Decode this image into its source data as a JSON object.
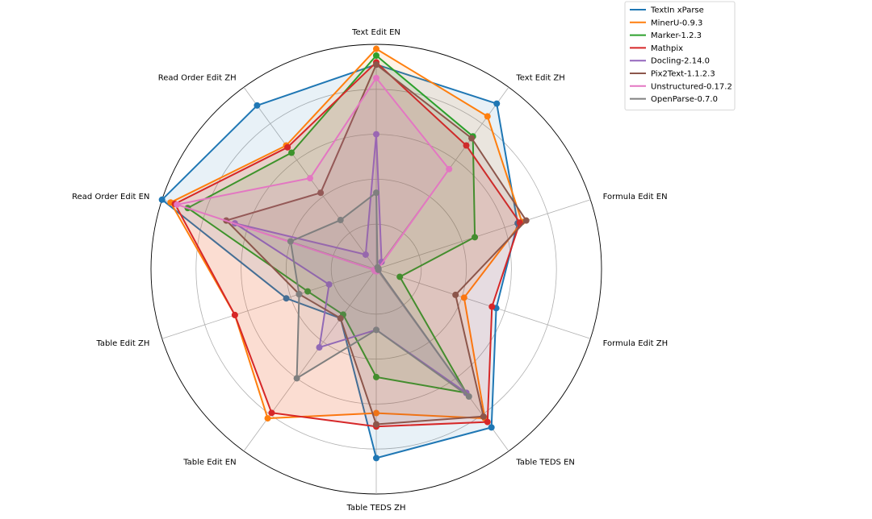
{
  "chart_data": {
    "type": "radar",
    "title": "",
    "axes": [
      "Text Edit EN",
      "Text Edit ZH",
      "Formula Edit EN",
      "Formula Edit ZH",
      "Table TEDS EN",
      "Table TEDS ZH",
      "Table Edit EN",
      "Table Edit ZH",
      "Read Order Edit EN",
      "Read Order Edit ZH"
    ],
    "rlim": [
      0,
      1
    ],
    "grid_levels": [
      0.2,
      0.4,
      0.6,
      0.8,
      1.0
    ],
    "legend_position": "top-right",
    "series": [
      {
        "name": "TextIn xParse",
        "color": "#1f77b4",
        "values": [
          0.91,
          0.91,
          0.66,
          0.56,
          0.87,
          0.84,
          0.27,
          0.42,
          1.0,
          0.9
        ]
      },
      {
        "name": "MinerU-0.9.3",
        "color": "#ff7f0e",
        "values": [
          0.98,
          0.84,
          0.68,
          0.41,
          0.82,
          0.64,
          0.82,
          0.66,
          0.96,
          0.68
        ]
      },
      {
        "name": "Marker-1.2.3",
        "color": "#2ca02c",
        "values": [
          0.95,
          0.73,
          0.46,
          0.11,
          0.68,
          0.48,
          0.25,
          0.32,
          0.88,
          0.64
        ]
      },
      {
        "name": "Mathpix",
        "color": "#d62728",
        "values": [
          0.92,
          0.68,
          0.67,
          0.54,
          0.84,
          0.7,
          0.79,
          0.66,
          0.94,
          0.67
        ]
      },
      {
        "name": "Docling-2.14.0",
        "color": "#9467bd",
        "values": [
          0.6,
          0.04,
          0.01,
          0.01,
          0.68,
          0.27,
          0.43,
          0.22,
          0.66,
          0.08
        ]
      },
      {
        "name": "Pix2Text-1.1.2.3",
        "color": "#8c564b",
        "values": [
          0.91,
          0.72,
          0.7,
          0.37,
          0.81,
          0.69,
          0.27,
          0.36,
          0.7,
          0.42
        ]
      },
      {
        "name": "Unstructured-0.17.2",
        "color": "#e377c2",
        "values": [
          0.85,
          0.55,
          0.01,
          0.01,
          0.01,
          0.01,
          0.01,
          0.01,
          0.93,
          0.5
        ]
      },
      {
        "name": "OpenParse-0.7.0",
        "color": "#7f7f7f",
        "values": [
          0.34,
          0.01,
          0.01,
          0.01,
          0.7,
          0.27,
          0.6,
          0.36,
          0.4,
          0.27
        ]
      }
    ]
  }
}
